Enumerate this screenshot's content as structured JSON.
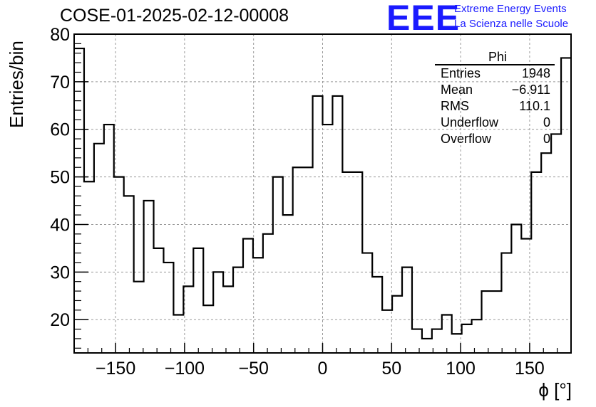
{
  "header": {
    "title": "COSE-01-2025-02-12-00008",
    "logo_text": "EEE",
    "org_line1": "Extreme Energy Events",
    "org_line2": "La Scienza nelle Scuole"
  },
  "stats_box": {
    "name": "Phi",
    "rows": [
      {
        "label": "Entries",
        "value": "1948"
      },
      {
        "label": "Mean",
        "value": "−6.911"
      },
      {
        "label": "RMS",
        "value": "110.1"
      },
      {
        "label": "Underflow",
        "value": "0"
      },
      {
        "label": "Overflow",
        "value": "0"
      }
    ]
  },
  "colors": {
    "accent": "#1a1aff",
    "line": "#000000",
    "grid": "#999999"
  },
  "chart_data": {
    "type": "bar",
    "style": "step-histogram",
    "title": "COSE-01-2025-02-12-00008",
    "xlabel": "ϕ [°]",
    "ylabel": "Entries/bin",
    "xlim": [
      -180,
      180
    ],
    "ylim": [
      13,
      80
    ],
    "bin_width": 7.2,
    "grid": true,
    "x_ticks": [
      -150,
      -100,
      -50,
      0,
      50,
      100,
      150
    ],
    "x_tick_labels": [
      "−150",
      "−100",
      "−50",
      "0",
      "50",
      "100",
      "150"
    ],
    "y_ticks": [
      20,
      30,
      40,
      50,
      60,
      70,
      80
    ],
    "y_tick_labels": [
      "20",
      "30",
      "40",
      "50",
      "60",
      "70",
      "80"
    ],
    "values": [
      77,
      49,
      57,
      61,
      50,
      46,
      28,
      45,
      35,
      32,
      21,
      27,
      35,
      23,
      30,
      27,
      31,
      37,
      33,
      38,
      50,
      42,
      52,
      52,
      67,
      61,
      67,
      51,
      51,
      34,
      29,
      22,
      25,
      31,
      18,
      16,
      18,
      21,
      17,
      19,
      20,
      26,
      26,
      34,
      40,
      37,
      51,
      55,
      59,
      75
    ]
  }
}
